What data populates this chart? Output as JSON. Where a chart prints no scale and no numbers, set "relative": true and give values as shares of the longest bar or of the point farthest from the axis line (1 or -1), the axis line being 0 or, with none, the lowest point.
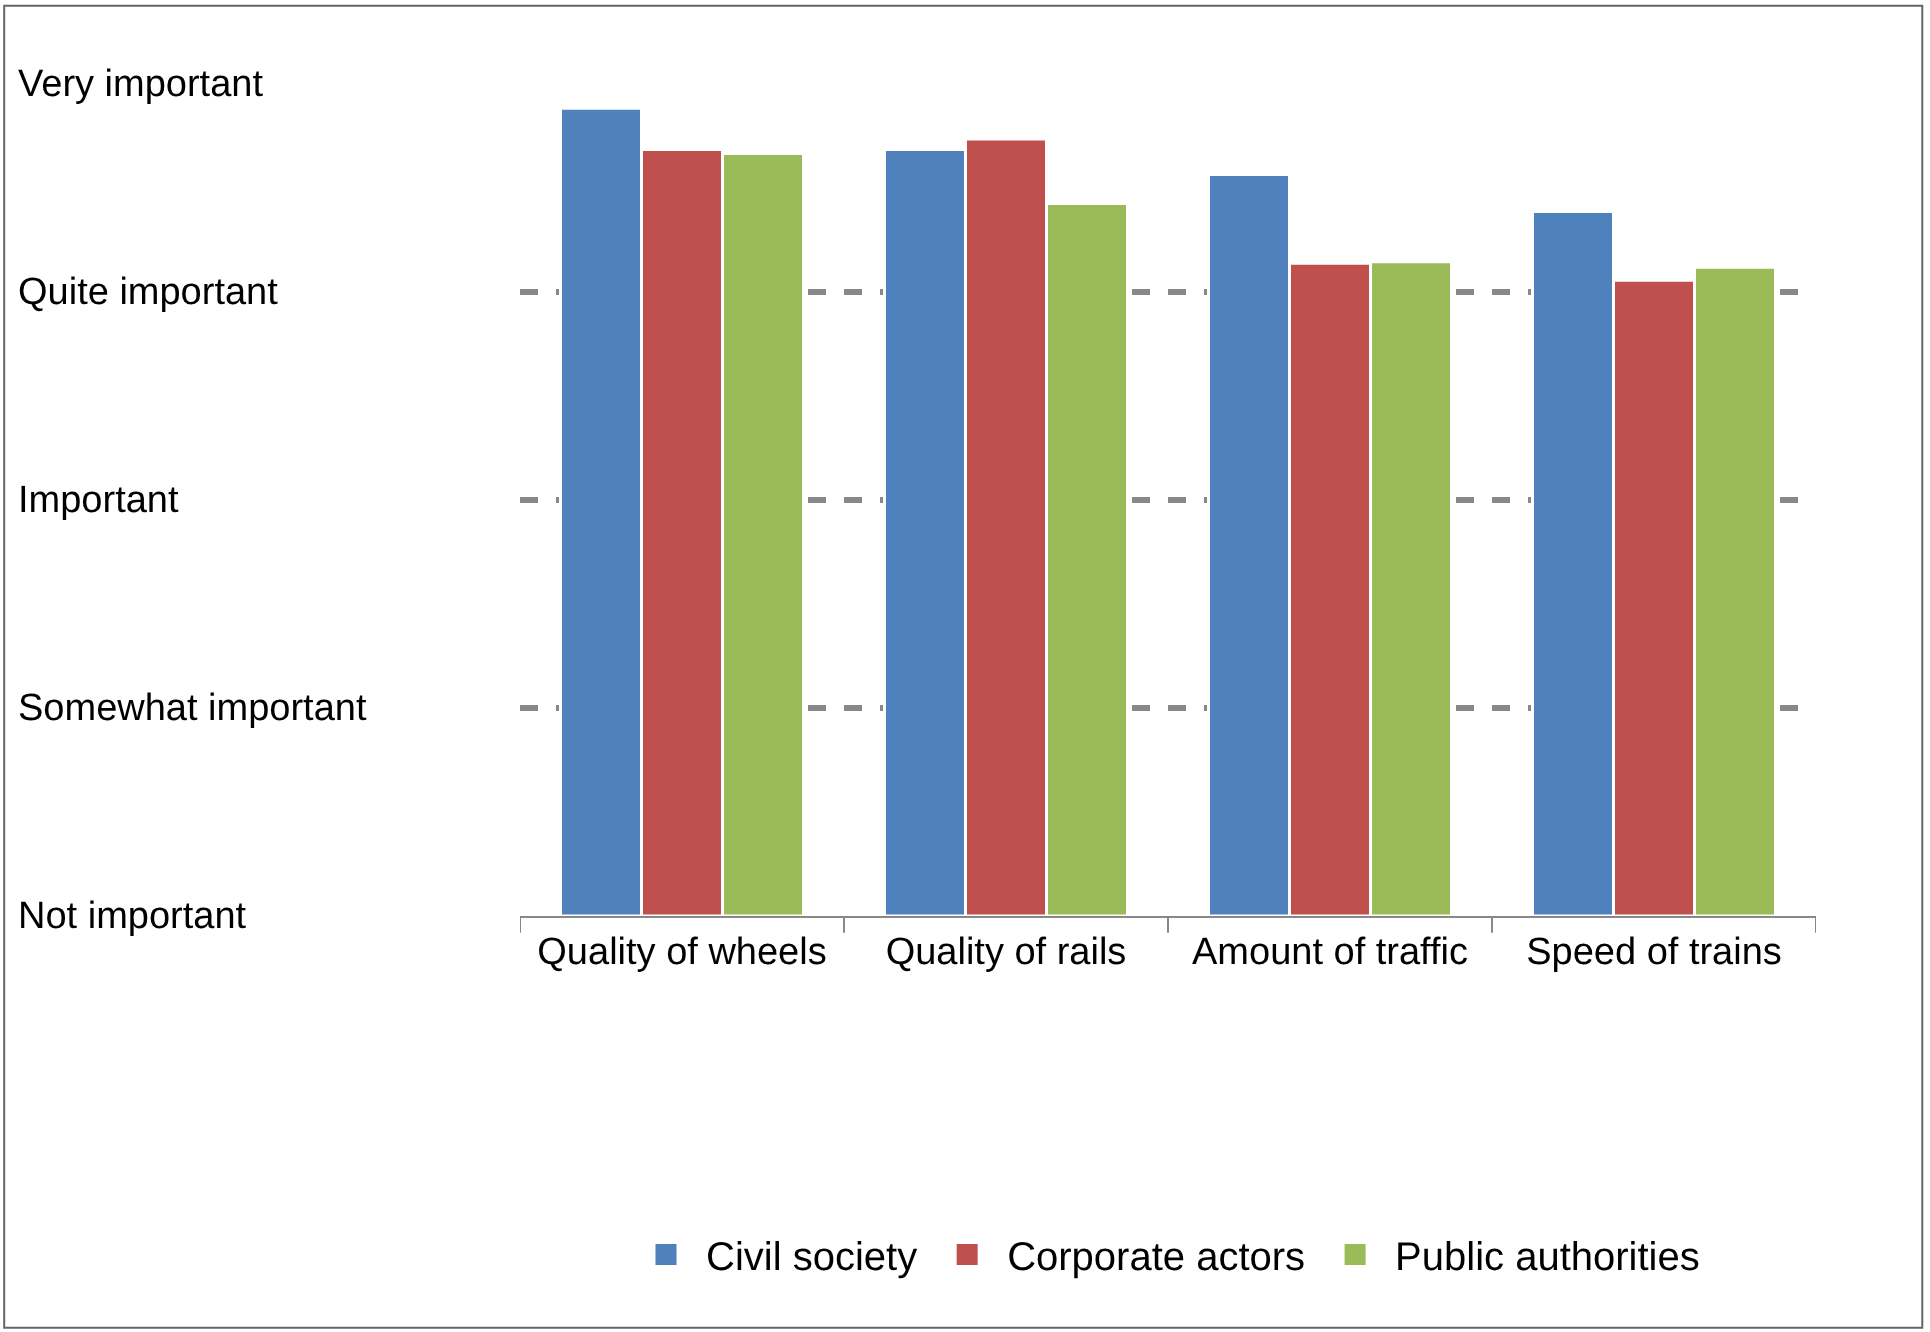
{
  "chart_data": {
    "type": "bar",
    "relative": true,
    "categories": [
      "Quality of wheels",
      "Quality of rails",
      "Amount of traffic",
      "Speed of trains"
    ],
    "series": [
      {
        "name": "Civil society",
        "color": "#4f81bd",
        "values": [
          1,
          0.949,
          0.918,
          0.872
        ]
      },
      {
        "name": "Corporate actors",
        "color": "#c0504d",
        "values": [
          0.949,
          0.962,
          0.808,
          0.787
        ]
      },
      {
        "name": "Public authorities",
        "color": "#9bbb59",
        "values": [
          0.944,
          0.882,
          0.81,
          0.803
        ]
      }
    ],
    "annotations": [
      "Not important",
      "Somewhat important",
      "Important",
      "Quite important",
      "Very important"
    ],
    "grid": "y",
    "legend": "bottom"
  }
}
